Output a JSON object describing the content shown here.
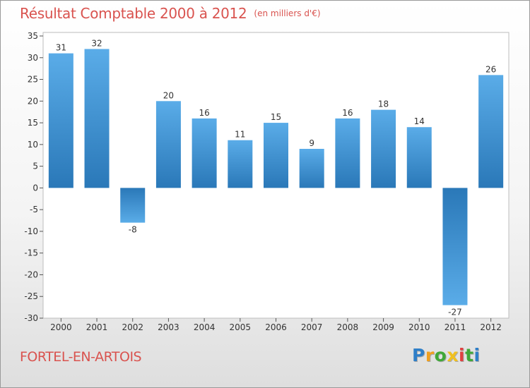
{
  "title": "Résultat Comptable 2000 à 2012",
  "unit_label": "(en milliers d'€)",
  "commune": "FORTEL-EN-ARTOIS",
  "logo": {
    "letters": [
      "P",
      "r",
      "o",
      "x",
      "i",
      "t",
      "i"
    ],
    "colors": [
      "#2f7fc8",
      "#f0a020",
      "#40a838",
      "#f0c020",
      "#e04040",
      "#40a838",
      "#2f7fc8"
    ]
  },
  "colors": {
    "bar_light": "#5aace8",
    "bar_dark": "#2a78b8",
    "title": "#d9534f"
  },
  "chart_data": {
    "type": "bar",
    "title": "Résultat Comptable 2000 à 2012",
    "subtitle": "(en milliers d'€)",
    "categories": [
      "2000",
      "2001",
      "2002",
      "2003",
      "2004",
      "2005",
      "2006",
      "2007",
      "2008",
      "2009",
      "2010",
      "2011",
      "2012"
    ],
    "values": [
      31,
      32,
      -8,
      20,
      16,
      11,
      15,
      9,
      16,
      18,
      14,
      -27,
      26
    ],
    "yticks": [
      35,
      30,
      25,
      20,
      15,
      10,
      5,
      0,
      -5,
      -10,
      -15,
      -20,
      -25,
      -30
    ],
    "ylim": [
      -30,
      35
    ],
    "xlabel": "",
    "ylabel": "",
    "grid": false
  }
}
